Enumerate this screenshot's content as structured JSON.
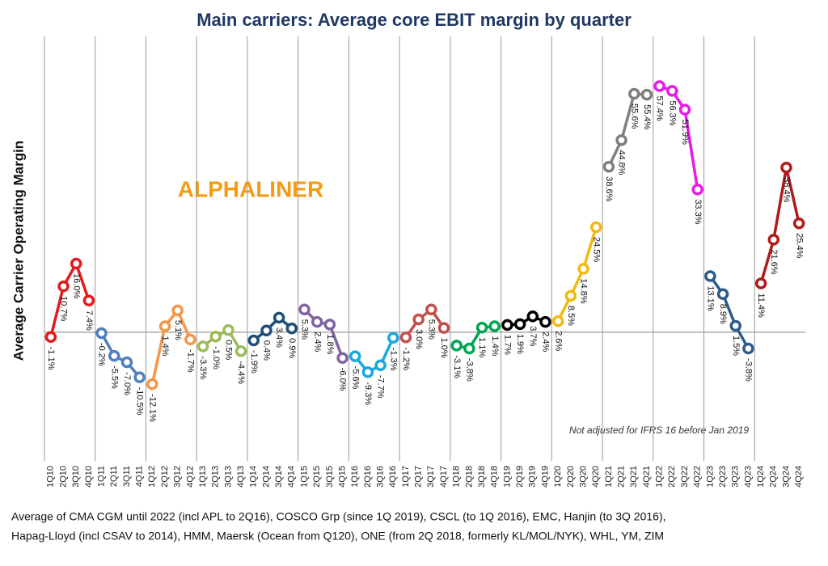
{
  "chart_data": {
    "type": "line",
    "title": "Main carriers: Average core EBIT margin by quarter",
    "y_label": "Average Carrier Operating Margin",
    "watermark": "ALPHALINER",
    "annotation": "Not adjusted for IFRS 16 before Jan 2019",
    "footnote": [
      "Average of CMA CGM until 2022 (incl APL to 2Q16), COSCO Grp (since 1Q 2019), CSCL (to 1Q 2016), EMC, Hanjin (to 3Q 2016),",
      "Hapag-Lloyd (incl CSAV to 2014), HMM, Maersk (Ocean from Q120), ONE (from 2Q 2018, formerly KL/MOL/NYK), WHL, YM, ZIM"
    ],
    "categories": [
      "1Q10",
      "2Q10",
      "3Q10",
      "4Q10",
      "1Q11",
      "2Q11",
      "3Q11",
      "4Q11",
      "1Q12",
      "2Q12",
      "3Q12",
      "4Q12",
      "1Q13",
      "2Q13",
      "3Q13",
      "4Q13",
      "1Q14",
      "2Q14",
      "3Q14",
      "4Q14",
      "1Q15",
      "2Q15",
      "3Q15",
      "4Q15",
      "1Q16",
      "2Q16",
      "3Q16",
      "4Q16",
      "1Q17",
      "2Q17",
      "3Q17",
      "4Q17",
      "1Q18",
      "2Q18",
      "3Q18",
      "4Q18",
      "1Q19",
      "2Q19",
      "3Q19",
      "4Q19",
      "1Q20",
      "2Q20",
      "3Q20",
      "4Q20",
      "1Q21",
      "2Q21",
      "3Q21",
      "4Q21",
      "1Q22",
      "2Q22",
      "3Q22",
      "4Q22",
      "1Q23",
      "2Q23",
      "3Q23",
      "4Q23",
      "1Q24",
      "2Q24",
      "3Q24",
      "4Q24"
    ],
    "values": [
      -1.1,
      10.7,
      16.0,
      7.4,
      -0.2,
      -5.5,
      -7.0,
      -10.5,
      -12.1,
      1.4,
      5.1,
      -1.7,
      -3.3,
      -1.0,
      0.5,
      -4.4,
      -1.9,
      0.4,
      3.4,
      0.9,
      5.3,
      2.4,
      1.8,
      -6.0,
      -5.6,
      -9.3,
      -7.7,
      -1.3,
      -1.2,
      3.0,
      5.3,
      1.0,
      -3.1,
      -3.8,
      1.1,
      1.4,
      1.7,
      1.9,
      3.7,
      2.4,
      2.6,
      8.5,
      14.8,
      24.5,
      38.6,
      44.8,
      55.6,
      55.4,
      57.4,
      56.3,
      51.9,
      33.3,
      13.1,
      8.9,
      1.5,
      -3.8,
      11.4,
      21.6,
      38.4,
      25.4
    ],
    "value_labels": [
      "-1.1%",
      "10.7%",
      "16.0%",
      "7.4%",
      "-0.2%",
      "-5.5%",
      "-7.0%",
      "-10.5%",
      "-12.1%",
      "1.4%",
      "5.1%",
      "-1.7%",
      "-3.3%",
      "-1.0%",
      "0.5%",
      "-4.4%",
      "-1.9%",
      "0.4%",
      "3.4%",
      "0.9%",
      "5.3%",
      "2.4%",
      "1.8%",
      "-6.0%",
      "-5.6%",
      "-9.3%",
      "-7.7%",
      "-1.3%",
      "-1.2%",
      "3.0%",
      "5.3%",
      "1.0%",
      "-3.1%",
      "-3.8%",
      "1.1%",
      "1.4%",
      "1.7%",
      "1.9%",
      "3.7%",
      "2.4%",
      "2.6%",
      "8.5%",
      "14.8%",
      "24.5%",
      "38.6%",
      "44.8%",
      "55.6%",
      "55.4%",
      "57.4%",
      "56.3%",
      "51.9%",
      "33.3%",
      "13.1%",
      "8.9%",
      "1.5%",
      "-3.8%",
      "11.4%",
      "21.6%",
      "38.4%",
      "25.4%"
    ],
    "point_colors": [
      "#e41a1c",
      "#e41a1c",
      "#e41a1c",
      "#e41a1c",
      "#4f81bd",
      "#4f81bd",
      "#4f81bd",
      "#4f81bd",
      "#f79646",
      "#f79646",
      "#f79646",
      "#f79646",
      "#9bbb59",
      "#9bbb59",
      "#9bbb59",
      "#9bbb59",
      "#1f4e79",
      "#1f4e79",
      "#1f4e79",
      "#1f4e79",
      "#8064a2",
      "#8064a2",
      "#8064a2",
      "#8064a2",
      "#1aa7e0",
      "#1aa7e0",
      "#1aa7e0",
      "#1aa7e0",
      "#c0504d",
      "#c0504d",
      "#c0504d",
      "#c0504d",
      "#00a651",
      "#00a651",
      "#00a651",
      "#00a651",
      "#000000",
      "#000000",
      "#000000",
      "#000000",
      "#f2b90f",
      "#f2b90f",
      "#f2b90f",
      "#f2b90f",
      "#7f7f7f",
      "#7f7f7f",
      "#7f7f7f",
      "#7f7f7f",
      "#e61ce6",
      "#e61ce6",
      "#e61ce6",
      "#e61ce6",
      "#2e5c8a",
      "#2e5c8a",
      "#2e5c8a",
      "#2e5c8a",
      "#b01c1c",
      "#b01c1c",
      "#b01c1c",
      "#b01c1c"
    ],
    "ylim": [
      -30,
      69
    ]
  }
}
